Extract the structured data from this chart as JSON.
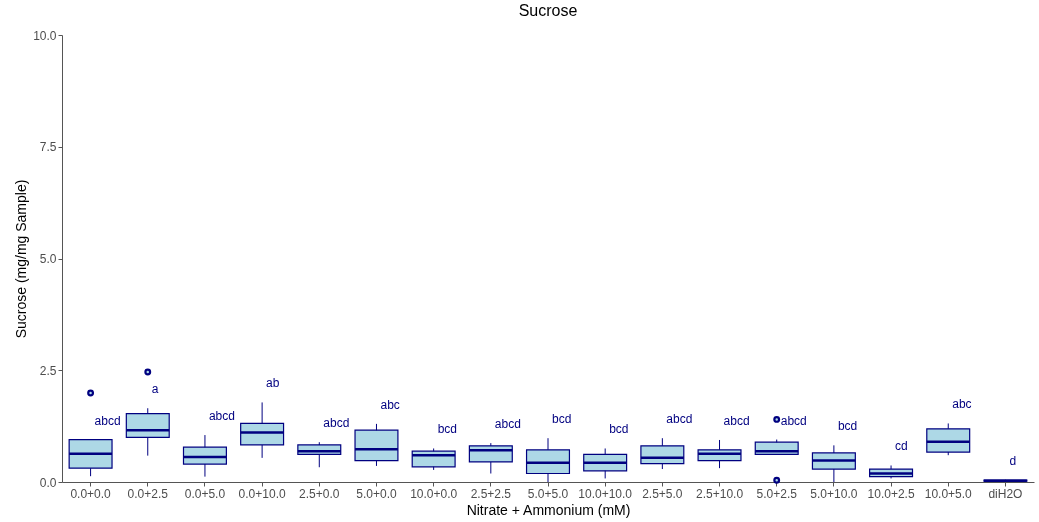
{
  "chart_data": {
    "type": "box",
    "title": "Sucrose",
    "xlabel": "Nitrate + Ammonium (mM)",
    "ylabel": "Sucrose (mg/mg Sample)",
    "categories": [
      "0.0+0.0",
      "0.0+2.5",
      "0.0+5.0",
      "0.0+10.0",
      "2.5+0.0",
      "5.0+0.0",
      "10.0+0.0",
      "2.5+2.5",
      "5.0+5.0",
      "10.0+10.0",
      "2.5+5.0",
      "2.5+10.0",
      "5.0+2.5",
      "5.0+10.0",
      "10.0+2.5",
      "10.0+5.0",
      "diH2O"
    ],
    "series": [
      {
        "color": "#add8e6",
        "boxes": [
          {
            "low": 0.13,
            "q1": 0.31,
            "median": 0.63,
            "q3": 0.95,
            "high": 0.95,
            "outliers": [
              1.99
            ]
          },
          {
            "low": 0.59,
            "q1": 1.0,
            "median": 1.16,
            "q3": 1.53,
            "high": 1.65,
            "outliers": [
              2.46
            ]
          },
          {
            "low": 0.12,
            "q1": 0.4,
            "median": 0.56,
            "q3": 0.78,
            "high": 1.05
          },
          {
            "low": 0.54,
            "q1": 0.83,
            "median": 1.11,
            "q3": 1.31,
            "high": 1.78
          },
          {
            "low": 0.33,
            "q1": 0.62,
            "median": 0.69,
            "q3": 0.83,
            "high": 0.89
          },
          {
            "low": 0.36,
            "q1": 0.48,
            "median": 0.73,
            "q3": 1.16,
            "high": 1.3
          },
          {
            "low": 0.27,
            "q1": 0.34,
            "median": 0.6,
            "q3": 0.69,
            "high": 0.75
          },
          {
            "low": 0.19,
            "q1": 0.45,
            "median": 0.71,
            "q3": 0.81,
            "high": 0.87
          },
          {
            "low": 0.0,
            "q1": 0.19,
            "median": 0.43,
            "q3": 0.72,
            "high": 0.98
          },
          {
            "low": 0.08,
            "q1": 0.25,
            "median": 0.43,
            "q3": 0.62,
            "high": 0.75
          },
          {
            "low": 0.29,
            "q1": 0.41,
            "median": 0.54,
            "q3": 0.81,
            "high": 0.98
          },
          {
            "low": 0.31,
            "q1": 0.48,
            "median": 0.63,
            "q3": 0.72,
            "high": 0.94
          },
          {
            "low": 0.62,
            "q1": 0.62,
            "median": 0.69,
            "q3": 0.89,
            "high": 0.95,
            "outliers": [
              0.04,
              1.4
            ]
          },
          {
            "low": 0.0,
            "q1": 0.29,
            "median": 0.48,
            "q3": 0.65,
            "high": 0.82
          },
          {
            "low": 0.08,
            "q1": 0.12,
            "median": 0.19,
            "q3": 0.29,
            "high": 0.37
          },
          {
            "low": 0.6,
            "q1": 0.67,
            "median": 0.9,
            "q3": 1.19,
            "high": 1.31
          },
          {
            "low": 0.01,
            "q1": 0.02,
            "median": 0.03,
            "q3": 0.04,
            "high": 0.05
          }
        ]
      }
    ],
    "ylim": [
      0,
      10
    ],
    "yticks": [
      {
        "value": 0,
        "label": "0.0"
      },
      2.5,
      {
        "value": 5,
        "label": "5.0"
      },
      7.5,
      {
        "value": 10,
        "label": "10.0"
      }
    ],
    "grid": false,
    "annotations": [
      "abcd",
      "a",
      "abcd",
      "ab",
      "abcd",
      "abc",
      "bcd",
      "abcd",
      "bcd",
      "bcd",
      "abcd",
      "abcd",
      "abcd",
      "bcd",
      "cd",
      "abc",
      "d"
    ]
  }
}
